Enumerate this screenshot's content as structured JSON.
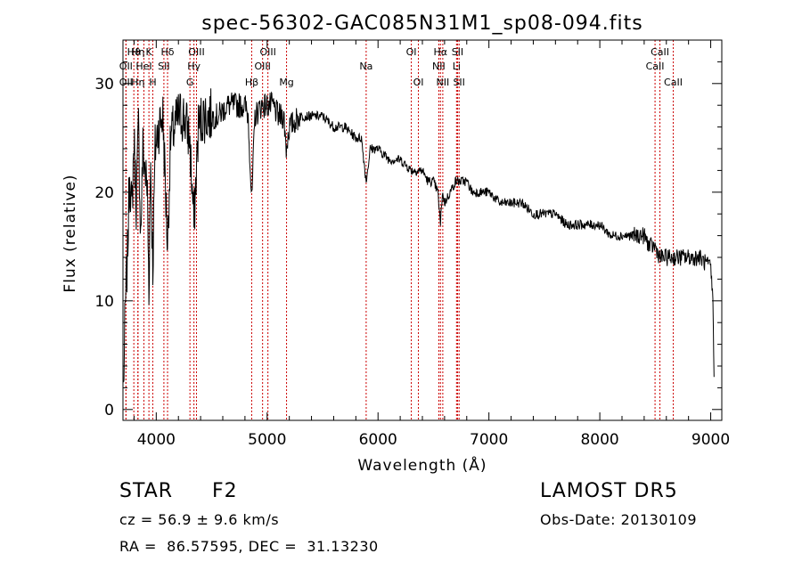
{
  "chart_data": {
    "type": "line",
    "title": "spec-56302-GAC085N31M1_sp08-094.fits",
    "xlabel": "Wavelength (Å)",
    "ylabel": "Flux (relative)",
    "xlim": [
      3700,
      9100
    ],
    "ylim": [
      -1,
      34
    ],
    "xticks": [
      4000,
      5000,
      6000,
      7000,
      8000,
      9000
    ],
    "xtick_labels": [
      "4000",
      "5000",
      "6000",
      "7000",
      "8000",
      "9000"
    ],
    "yticks": [
      0,
      10,
      20,
      30
    ],
    "ytick_labels": [
      "0",
      "10",
      "20",
      "30"
    ],
    "grid": false,
    "line_color": "#000000",
    "marker_color": "#cc0000",
    "spectrum": {
      "x": [
        3705,
        3720,
        3740,
        3760,
        3780,
        3800,
        3820,
        3840,
        3860,
        3880,
        3900,
        3920,
        3934,
        3950,
        3969,
        3990,
        4020,
        4060,
        4102,
        4130,
        4170,
        4200,
        4250,
        4300,
        4340,
        4380,
        4420,
        4480,
        4560,
        4640,
        4700,
        4760,
        4800,
        4830,
        4861,
        4890,
        4950,
        5000,
        5050,
        5100,
        5150,
        5172,
        5200,
        5300,
        5400,
        5500,
        5600,
        5700,
        5800,
        5850,
        5893,
        5930,
        6000,
        6100,
        6200,
        6300,
        6400,
        6450,
        6500,
        6540,
        6563,
        6580,
        6600,
        6650,
        6700,
        6750,
        6800,
        6850,
        6900,
        7000,
        7100,
        7200,
        7300,
        7400,
        7500,
        7600,
        7700,
        7800,
        7900,
        8000,
        8100,
        8200,
        8300,
        8400,
        8450,
        8498,
        8542,
        8600,
        8662,
        8700,
        8800,
        8900,
        9000,
        9020,
        9030
      ],
      "y": [
        2,
        9,
        14,
        22,
        18,
        25,
        19,
        26,
        16,
        24,
        22,
        20,
        11,
        23,
        13,
        24,
        26,
        27,
        15,
        25,
        26,
        27,
        27,
        25,
        17,
        26,
        27,
        27,
        27,
        28,
        28,
        28,
        28,
        27,
        19,
        27,
        28,
        28,
        28,
        27,
        27,
        24,
        26,
        27,
        27,
        27,
        26,
        26,
        25,
        25,
        21,
        24,
        24,
        23,
        23,
        22,
        22,
        21,
        21,
        20,
        17,
        20,
        19,
        20,
        21,
        21,
        21,
        20,
        20,
        20,
        19,
        19,
        19,
        18,
        18,
        18,
        17,
        17,
        17,
        17,
        16,
        16,
        16,
        16,
        15,
        15,
        14,
        14,
        14,
        14,
        14,
        14,
        13,
        10,
        3
      ]
    },
    "lines": [
      {
        "label": "Hη",
        "wavelength": 3835,
        "row": 1
      },
      {
        "label": "Hϑ",
        "wavelength": 3798,
        "row": 1
      },
      {
        "label": "OII",
        "wavelength": 3727,
        "row": 2
      },
      {
        "label": "HeI",
        "wavelength": 3889,
        "row": 2
      },
      {
        "label": "OII",
        "wavelength": 3727,
        "row": 3
      },
      {
        "label": "Hη",
        "wavelength": 3835,
        "row": 3
      },
      {
        "label": "K",
        "wavelength": 3934,
        "row": 1
      },
      {
        "label": "H",
        "wavelength": 3969,
        "row": 3
      },
      {
        "label": "Hδ",
        "wavelength": 4102,
        "row": 1
      },
      {
        "label": "SII",
        "wavelength": 4069,
        "row": 2
      },
      {
        "label": "OIII",
        "wavelength": 4363,
        "row": 1
      },
      {
        "label": "Hγ",
        "wavelength": 4340,
        "row": 2
      },
      {
        "label": "G",
        "wavelength": 4304,
        "row": 3
      },
      {
        "label": "Hβ",
        "wavelength": 4861,
        "row": 3
      },
      {
        "label": "OIII",
        "wavelength": 5007,
        "row": 1
      },
      {
        "label": "OIII",
        "wavelength": 4959,
        "row": 2
      },
      {
        "label": "Mg",
        "wavelength": 5175,
        "row": 3
      },
      {
        "label": "Na",
        "wavelength": 5893,
        "row": 2
      },
      {
        "label": "OI",
        "wavelength": 6300,
        "row": 1
      },
      {
        "label": "OI",
        "wavelength": 6364,
        "row": 3
      },
      {
        "label": "Hα",
        "wavelength": 6563,
        "row": 1
      },
      {
        "label": "NII",
        "wavelength": 6548,
        "row": 2
      },
      {
        "label": "NII",
        "wavelength": 6584,
        "row": 3
      },
      {
        "label": "SII",
        "wavelength": 6717,
        "row": 1
      },
      {
        "label": "Li",
        "wavelength": 6708,
        "row": 2
      },
      {
        "label": "SII",
        "wavelength": 6731,
        "row": 3
      },
      {
        "label": "CaII",
        "wavelength": 8542,
        "row": 1
      },
      {
        "label": "CaII",
        "wavelength": 8498,
        "row": 2
      },
      {
        "label": "CaII",
        "wavelength": 8662,
        "row": 3
      }
    ]
  },
  "info": {
    "class_label": "STAR",
    "subclass": "F2",
    "survey": "LAMOST DR5",
    "cz": "cz = 56.9 ± 9.6 km/s",
    "obs_date": "Obs-Date: 20130109",
    "coords": "RA =  86.57595, DEC =  31.13230"
  }
}
